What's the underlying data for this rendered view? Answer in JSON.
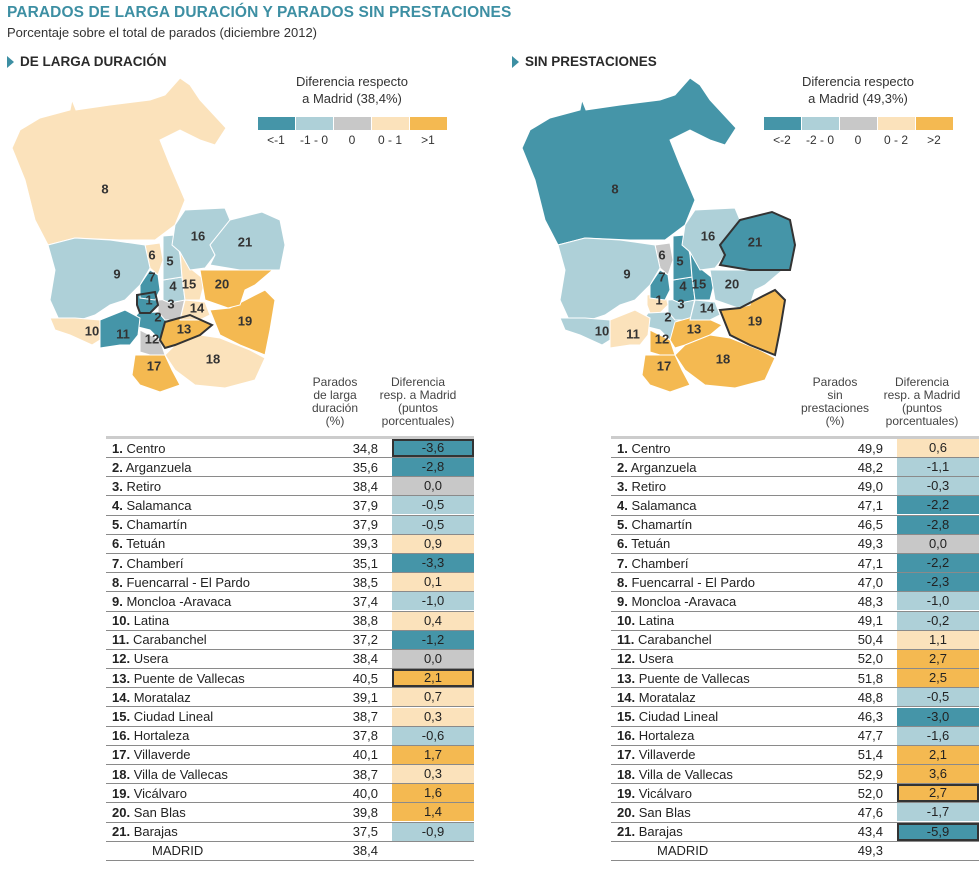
{
  "title": "PARADOS DE LARGA DURACIÓN Y PARADOS SIN PRESTACIONES",
  "subtitle": "Porcentaje sobre el total de parados (diciembre 2012)",
  "colors": {
    "title": "#3d8fa3",
    "cat_strong_neg": "#4595a8",
    "cat_neg": "#aed0d8",
    "cat_zero": "#c8c8c8",
    "cat_pos": "#fbe2bb",
    "cat_strong_pos": "#f4b951"
  },
  "panels": [
    {
      "heading": "DE LARGA DURACIÓN",
      "legend": {
        "title_line1": "Diferencia respecto",
        "title_line2": "a Madrid (38,4%)",
        "labels": [
          "<-1",
          "-1 - 0",
          "0",
          "0 - 1",
          ">1"
        ],
        "threshold": 1
      },
      "col_value_header": [
        "Parados",
        "de larga",
        "duración",
        "(%)"
      ],
      "col_diff_header": [
        "Diferencia",
        "resp. a Madrid",
        "(puntos",
        "porcentuales)"
      ],
      "highlighted": [
        1,
        13
      ],
      "total_label": "MADRID",
      "total_value": "38,4"
    },
    {
      "heading": "SIN PRESTACIONES",
      "legend": {
        "title_line1": "Diferencia respecto",
        "title_line2": "a Madrid (49,3%)",
        "labels": [
          "<-2",
          "-2 - 0",
          "0",
          "0 - 2",
          ">2"
        ],
        "threshold": 2
      },
      "col_value_header": [
        "Parados",
        "sin",
        "prestaciones",
        "(%)"
      ],
      "col_diff_header": [
        "Diferencia",
        "resp. a Madrid",
        "(puntos",
        "porcentuales)"
      ],
      "highlighted": [
        19,
        21
      ],
      "total_label": "MADRID",
      "total_value": "49,3"
    }
  ],
  "chart_data": [
    {
      "type": "table",
      "title": "De larga duración",
      "columns": [
        "Distrito",
        "Parados de larga duración (%)",
        "Diferencia resp. a Madrid (puntos porcentuales)"
      ],
      "districts": [
        {
          "n": 1,
          "name": "Centro",
          "value": "34,8",
          "diff": "-3,6",
          "cat": 0
        },
        {
          "n": 2,
          "name": "Arganzuela",
          "value": "35,6",
          "diff": "-2,8",
          "cat": 0
        },
        {
          "n": 3,
          "name": "Retiro",
          "value": "38,4",
          "diff": "0,0",
          "cat": 2
        },
        {
          "n": 4,
          "name": "Salamanca",
          "value": "37,9",
          "diff": "-0,5",
          "cat": 1
        },
        {
          "n": 5,
          "name": "Chamartín",
          "value": "37,9",
          "diff": "-0,5",
          "cat": 1
        },
        {
          "n": 6,
          "name": "Tetuán",
          "value": "39,3",
          "diff": "0,9",
          "cat": 3
        },
        {
          "n": 7,
          "name": "Chamberí",
          "value": "35,1",
          "diff": "-3,3",
          "cat": 0
        },
        {
          "n": 8,
          "name": "Fuencarral - El Pardo",
          "value": "38,5",
          "diff": "0,1",
          "cat": 3
        },
        {
          "n": 9,
          "name": "Moncloa -Aravaca",
          "value": "37,4",
          "diff": "-1,0",
          "cat": 1
        },
        {
          "n": 10,
          "name": "Latina",
          "value": "38,8",
          "diff": "0,4",
          "cat": 3
        },
        {
          "n": 11,
          "name": "Carabanchel",
          "value": "37,2",
          "diff": "-1,2",
          "cat": 0
        },
        {
          "n": 12,
          "name": "Usera",
          "value": "38,4",
          "diff": "0,0",
          "cat": 2
        },
        {
          "n": 13,
          "name": "Puente de Vallecas",
          "value": "40,5",
          "diff": "2,1",
          "cat": 4
        },
        {
          "n": 14,
          "name": "Moratalaz",
          "value": "39,1",
          "diff": "0,7",
          "cat": 3
        },
        {
          "n": 15,
          "name": "Ciudad Lineal",
          "value": "38,7",
          "diff": "0,3",
          "cat": 3
        },
        {
          "n": 16,
          "name": "Hortaleza",
          "value": "37,8",
          "diff": "-0,6",
          "cat": 1
        },
        {
          "n": 17,
          "name": "Villaverde",
          "value": "40,1",
          "diff": "1,7",
          "cat": 4
        },
        {
          "n": 18,
          "name": "Villa de Vallecas",
          "value": "38,7",
          "diff": "0,3",
          "cat": 3
        },
        {
          "n": 19,
          "name": "Vicálvaro",
          "value": "40,0",
          "diff": "1,6",
          "cat": 4
        },
        {
          "n": 20,
          "name": "San Blas",
          "value": "39,8",
          "diff": "1,4",
          "cat": 4
        },
        {
          "n": 21,
          "name": "Barajas",
          "value": "37,5",
          "diff": "-0,9",
          "cat": 1
        }
      ],
      "total": {
        "name": "MADRID",
        "value": "38,4"
      }
    },
    {
      "type": "table",
      "title": "Sin prestaciones",
      "columns": [
        "Distrito",
        "Parados sin prestaciones (%)",
        "Diferencia resp. a Madrid (puntos porcentuales)"
      ],
      "districts": [
        {
          "n": 1,
          "name": "Centro",
          "value": "49,9",
          "diff": "0,6",
          "cat": 3
        },
        {
          "n": 2,
          "name": "Arganzuela",
          "value": "48,2",
          "diff": "-1,1",
          "cat": 1
        },
        {
          "n": 3,
          "name": "Retiro",
          "value": "49,0",
          "diff": "-0,3",
          "cat": 1
        },
        {
          "n": 4,
          "name": "Salamanca",
          "value": "47,1",
          "diff": "-2,2",
          "cat": 0
        },
        {
          "n": 5,
          "name": "Chamartín",
          "value": "46,5",
          "diff": "-2,8",
          "cat": 0
        },
        {
          "n": 6,
          "name": "Tetuán",
          "value": "49,3",
          "diff": "0,0",
          "cat": 2
        },
        {
          "n": 7,
          "name": "Chamberí",
          "value": "47,1",
          "diff": "-2,2",
          "cat": 0
        },
        {
          "n": 8,
          "name": "Fuencarral - El Pardo",
          "value": "47,0",
          "diff": "-2,3",
          "cat": 0
        },
        {
          "n": 9,
          "name": "Moncloa -Aravaca",
          "value": "48,3",
          "diff": "-1,0",
          "cat": 1
        },
        {
          "n": 10,
          "name": "Latina",
          "value": "49,1",
          "diff": "-0,2",
          "cat": 1
        },
        {
          "n": 11,
          "name": "Carabanchel",
          "value": "50,4",
          "diff": "1,1",
          "cat": 3
        },
        {
          "n": 12,
          "name": "Usera",
          "value": "52,0",
          "diff": "2,7",
          "cat": 4
        },
        {
          "n": 13,
          "name": "Puente de Vallecas",
          "value": "51,8",
          "diff": "2,5",
          "cat": 4
        },
        {
          "n": 14,
          "name": "Moratalaz",
          "value": "48,8",
          "diff": "-0,5",
          "cat": 1
        },
        {
          "n": 15,
          "name": "Ciudad Lineal",
          "value": "46,3",
          "diff": "-3,0",
          "cat": 0
        },
        {
          "n": 16,
          "name": "Hortaleza",
          "value": "47,7",
          "diff": "-1,6",
          "cat": 1
        },
        {
          "n": 17,
          "name": "Villaverde",
          "value": "51,4",
          "diff": "2,1",
          "cat": 4
        },
        {
          "n": 18,
          "name": "Villa de Vallecas",
          "value": "52,9",
          "diff": "3,6",
          "cat": 4
        },
        {
          "n": 19,
          "name": "Vicálvaro",
          "value": "52,0",
          "diff": "2,7",
          "cat": 4
        },
        {
          "n": 20,
          "name": "San Blas",
          "value": "47,6",
          "diff": "-1,7",
          "cat": 1
        },
        {
          "n": 21,
          "name": "Barajas",
          "value": "43,4",
          "diff": "-5,9",
          "cat": 0
        }
      ],
      "total": {
        "name": "MADRID",
        "value": "49,3"
      }
    }
  ]
}
